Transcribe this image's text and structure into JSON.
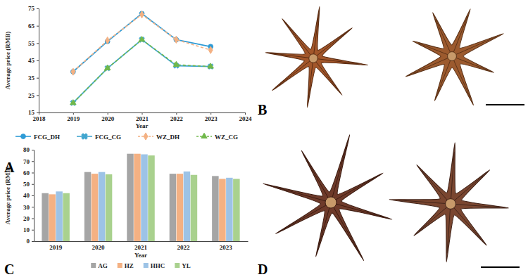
{
  "panel_labels": [
    "A",
    "B",
    "C",
    "D"
  ],
  "chart_data": [
    {
      "type": "line",
      "x_label": "Year",
      "y_label": "Average price (RMB)",
      "x": [
        2019,
        2020,
        2021,
        2022,
        2023
      ],
      "xlim": [
        2018,
        2024
      ],
      "xticks": [
        2018,
        2019,
        2020,
        2021,
        2022,
        2023,
        2024
      ],
      "ylim": [
        15,
        75
      ],
      "yticks": [
        15,
        25,
        35,
        45,
        55,
        65,
        75
      ],
      "grid": false,
      "legend": "bottom",
      "series": [
        {
          "name": "FCG_DH",
          "color": "#2e9bd6",
          "marker": "circle",
          "line_style": "solid",
          "values": [
            38.5,
            56,
            72,
            57,
            53
          ]
        },
        {
          "name": "FCG_CG",
          "color": "#41a6cf",
          "marker": "x",
          "line_style": "solid",
          "values": [
            20.5,
            40.5,
            57,
            42,
            41.5
          ]
        },
        {
          "name": "WZ_DH",
          "color": "#f4b183",
          "marker": "diamond",
          "line_style": "dashed",
          "values": [
            38.5,
            56.5,
            71.5,
            57,
            51
          ]
        },
        {
          "name": "WZ_CG",
          "color": "#70b84a",
          "marker": "triangle",
          "line_style": "dashed",
          "values": [
            20.5,
            40.5,
            57,
            42.5,
            41.5
          ]
        }
      ]
    },
    {
      "type": "bar",
      "x_label": "Year",
      "y_label": "Average price (RMB)",
      "categories": [
        "2019",
        "2020",
        "2021",
        "2022",
        "2023"
      ],
      "ylim": [
        0,
        80
      ],
      "yticks": [
        0,
        10,
        20,
        30,
        40,
        50,
        60,
        70,
        80
      ],
      "grid": false,
      "legend": "bottom",
      "series": [
        {
          "name": "AG",
          "color": "#a5a5a5",
          "values": [
            42,
            60.5,
            76.5,
            59,
            57
          ]
        },
        {
          "name": "HZ",
          "color": "#f4b183",
          "values": [
            41,
            59,
            76.5,
            59,
            54.5
          ]
        },
        {
          "name": "HHC",
          "color": "#9dc3e6",
          "values": [
            43.5,
            60.5,
            76,
            61,
            55.5
          ]
        },
        {
          "name": "YL",
          "color": "#a9d18e",
          "values": [
            42,
            58.5,
            75,
            58,
            54.5
          ]
        }
      ]
    }
  ]
}
